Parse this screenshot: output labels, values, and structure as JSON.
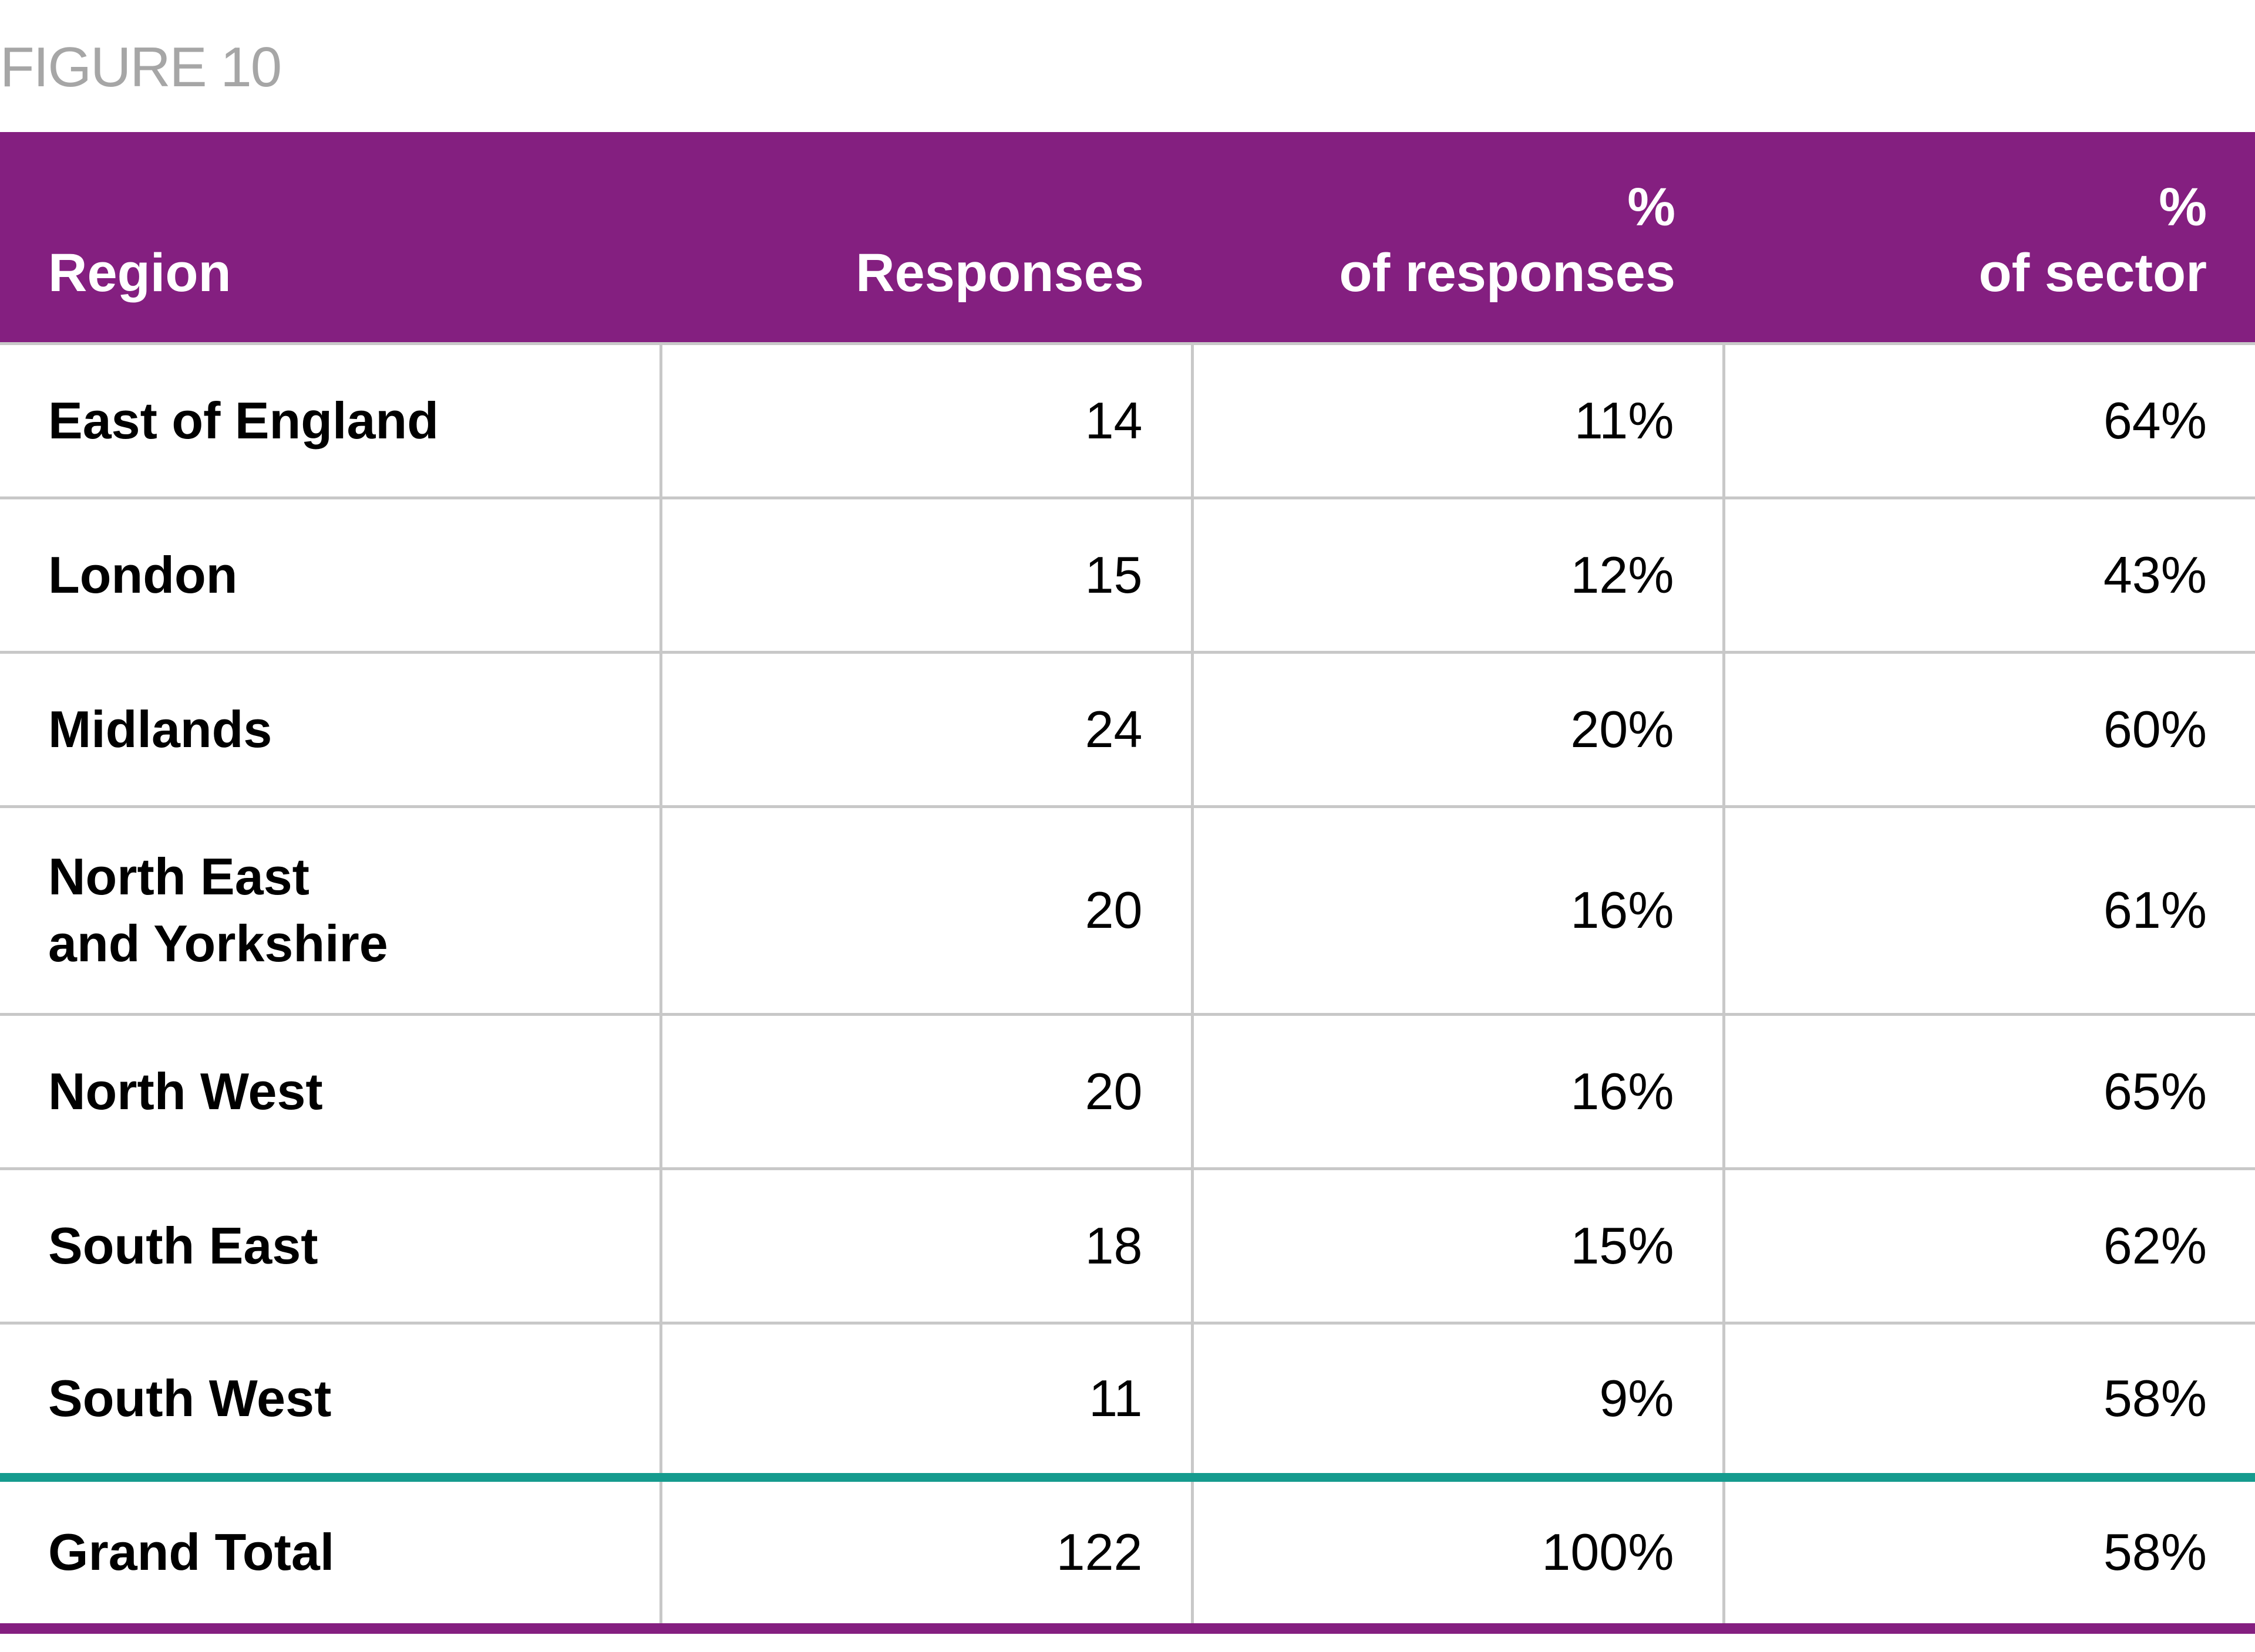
{
  "figure_label": "FIGURE 10",
  "colors": {
    "header_bg": "#841f80",
    "header_text": "#ffffff",
    "grid": "#c8c8c8",
    "total_separator": "#159b8e",
    "figure_label": "#a6a6a6"
  },
  "table": {
    "headers": {
      "region": "Region",
      "responses": "Responses",
      "pct_responses_line1": "%",
      "pct_responses_line2": "of responses",
      "pct_sector_line1": "%",
      "pct_sector_line2": "of sector"
    },
    "rows": [
      {
        "region": "East of England",
        "responses": "14",
        "pct_responses": "11%",
        "pct_sector": "64%"
      },
      {
        "region": "London",
        "responses": "15",
        "pct_responses": "12%",
        "pct_sector": "43%"
      },
      {
        "region": "Midlands",
        "responses": "24",
        "pct_responses": "20%",
        "pct_sector": "60%"
      },
      {
        "region_line1": "North East",
        "region_line2": "and Yorkshire",
        "responses": "20",
        "pct_responses": "16%",
        "pct_sector": "61%"
      },
      {
        "region": "North West",
        "responses": "20",
        "pct_responses": "16%",
        "pct_sector": "65%"
      },
      {
        "region": "South East",
        "responses": "18",
        "pct_responses": "15%",
        "pct_sector": "62%"
      },
      {
        "region": "South West",
        "responses": "11",
        "pct_responses": "9%",
        "pct_sector": "58%"
      }
    ],
    "total": {
      "region": "Grand Total",
      "responses": "122",
      "pct_responses": "100%",
      "pct_sector": "58%"
    }
  }
}
